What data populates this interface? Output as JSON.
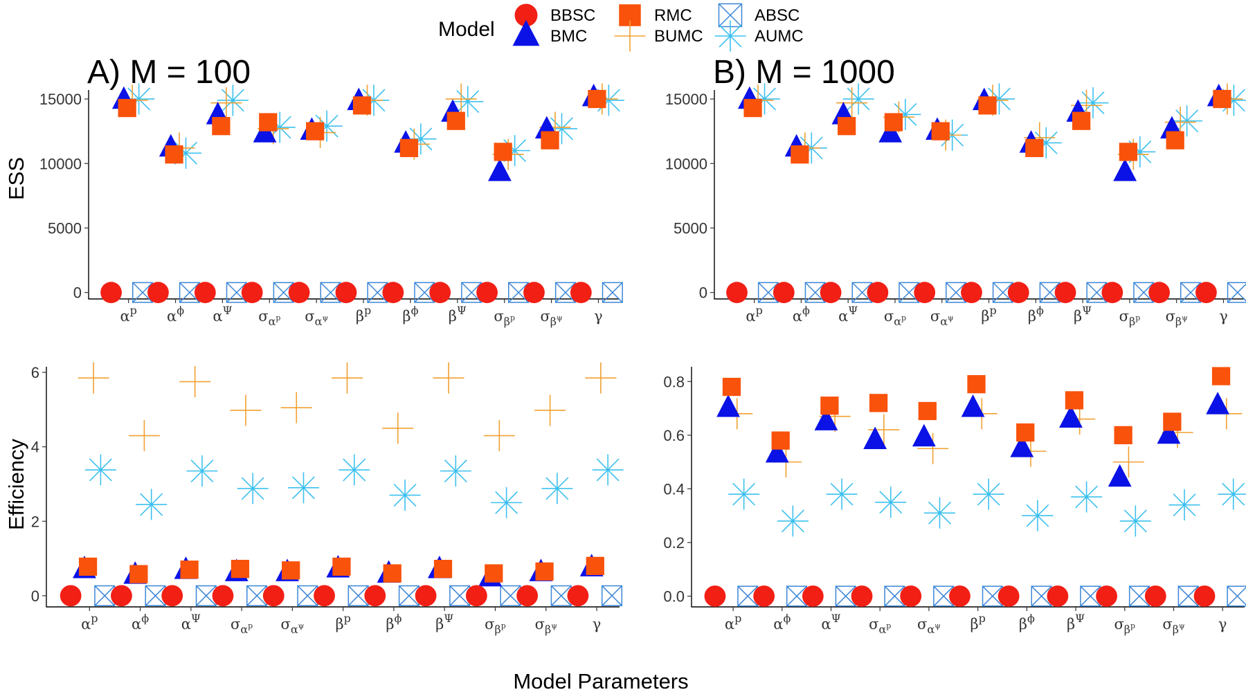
{
  "legend": {
    "title": "Model",
    "entries": [
      {
        "name": "BBSC",
        "shape": "circle",
        "color": "#f21f15"
      },
      {
        "name": "BMC",
        "shape": "triangle",
        "color": "#0a12e6"
      },
      {
        "name": "RMC",
        "shape": "square",
        "color": "#f9520a"
      },
      {
        "name": "BUMC",
        "shape": "plus",
        "color": "#f0a030"
      },
      {
        "name": "ABSC",
        "shape": "boxx",
        "color": "#3a86d8"
      },
      {
        "name": "AUMC",
        "shape": "asterisk",
        "color": "#3cc0ef"
      }
    ]
  },
  "x_axis_title": "Model Parameters",
  "parameters": [
    "α^p",
    "α^ϕ",
    "α^Ψ",
    "σ_α^p",
    "σ_α^ψ",
    "β^p",
    "β^ϕ",
    "β^Ψ",
    "σ_β^p",
    "σ_β^ψ",
    "γ"
  ],
  "chart_data": [
    {
      "id": "ess_m100",
      "type": "scatter",
      "title": "A) M = 100",
      "ylabel": "ESS",
      "ylim": [
        -500,
        15700
      ],
      "yticks": [
        0,
        5000,
        10000,
        15000
      ],
      "categories": [
        "α^p",
        "α^ϕ",
        "α^Ψ",
        "σ_α^p",
        "σ_α^ψ",
        "β^p",
        "β^ϕ",
        "β^Ψ",
        "σ_β^p",
        "σ_β^ψ",
        "γ"
      ],
      "series": [
        {
          "name": "BBSC",
          "values": [
            0,
            0,
            0,
            0,
            0,
            0,
            0,
            0,
            0,
            0,
            0
          ]
        },
        {
          "name": "BMC",
          "values": [
            14900,
            11200,
            13700,
            12300,
            12500,
            14800,
            11500,
            13900,
            9300,
            12600,
            15100
          ]
        },
        {
          "name": "RMC",
          "values": [
            14300,
            10700,
            12900,
            13200,
            12500,
            14500,
            11200,
            13300,
            10900,
            11800,
            15000
          ]
        },
        {
          "name": "BUMC",
          "values": [
            14900,
            11200,
            14700,
            12700,
            12400,
            14900,
            11500,
            15000,
            10700,
            12800,
            15000
          ]
        },
        {
          "name": "ABSC",
          "values": [
            0,
            0,
            0,
            0,
            0,
            0,
            0,
            0,
            0,
            0,
            0
          ]
        },
        {
          "name": "AUMC",
          "values": [
            15000,
            10800,
            14900,
            12800,
            12900,
            14900,
            11900,
            14800,
            11000,
            12700,
            14900
          ]
        }
      ]
    },
    {
      "id": "ess_m1000",
      "type": "scatter",
      "title": "B) M = 1000",
      "ylabel": "",
      "ylim": [
        -500,
        15700
      ],
      "yticks": [
        0,
        5000,
        10000,
        15000
      ],
      "categories": [
        "α^p",
        "α^ϕ",
        "α^Ψ",
        "σ_α^p",
        "σ_α^ψ",
        "β^p",
        "β^ϕ",
        "β^Ψ",
        "σ_β^p",
        "σ_β^ψ",
        "γ"
      ],
      "series": [
        {
          "name": "BBSC",
          "values": [
            0,
            0,
            0,
            0,
            0,
            0,
            0,
            0,
            0,
            0,
            0
          ]
        },
        {
          "name": "BMC",
          "values": [
            14900,
            11200,
            13700,
            12300,
            12500,
            14800,
            11500,
            13900,
            9300,
            12600,
            15100
          ]
        },
        {
          "name": "RMC",
          "values": [
            14300,
            10700,
            12900,
            13200,
            12500,
            14500,
            11200,
            13300,
            10900,
            11800,
            15000
          ]
        },
        {
          "name": "BUMC",
          "values": [
            14900,
            11200,
            14700,
            13600,
            12200,
            14900,
            12000,
            14500,
            10700,
            13200,
            15000
          ]
        },
        {
          "name": "ABSC",
          "values": [
            0,
            0,
            0,
            0,
            0,
            0,
            0,
            0,
            0,
            0,
            0
          ]
        },
        {
          "name": "AUMC",
          "values": [
            15000,
            11200,
            15000,
            13800,
            12200,
            15000,
            11600,
            14700,
            10900,
            13300,
            14900
          ]
        }
      ]
    },
    {
      "id": "eff_m100",
      "type": "scatter",
      "title": "",
      "ylabel": "Efficiency",
      "ylim": [
        -0.3,
        6.15
      ],
      "yticks": [
        0,
        2,
        4,
        6
      ],
      "categories": [
        "α^p",
        "α^ϕ",
        "α^Ψ",
        "σ_α^p",
        "σ_α^ψ",
        "β^p",
        "β^ϕ",
        "β^Ψ",
        "σ_β^p",
        "σ_β^ψ",
        "γ"
      ],
      "series": [
        {
          "name": "BBSC",
          "values": [
            0,
            0,
            0,
            0,
            0,
            0,
            0,
            0,
            0,
            0,
            0
          ]
        },
        {
          "name": "BMC",
          "values": [
            0.7,
            0.55,
            0.68,
            0.62,
            0.62,
            0.72,
            0.58,
            0.7,
            0.48,
            0.62,
            0.75
          ]
        },
        {
          "name": "RMC",
          "values": [
            0.78,
            0.58,
            0.7,
            0.72,
            0.68,
            0.78,
            0.6,
            0.72,
            0.6,
            0.65,
            0.8
          ]
        },
        {
          "name": "BUMC",
          "values": [
            5.85,
            4.3,
            5.75,
            4.98,
            5.05,
            5.85,
            4.5,
            5.85,
            4.3,
            4.98,
            5.85
          ]
        },
        {
          "name": "ABSC",
          "values": [
            0,
            0,
            0,
            0,
            0,
            0,
            0,
            0,
            0,
            0,
            0
          ]
        },
        {
          "name": "AUMC",
          "values": [
            3.38,
            2.45,
            3.35,
            2.88,
            2.9,
            3.38,
            2.7,
            3.35,
            2.5,
            2.88,
            3.38
          ]
        }
      ]
    },
    {
      "id": "eff_m1000",
      "type": "scatter",
      "title": "",
      "ylabel": "",
      "ylim": [
        -0.04,
        0.855
      ],
      "yticks": [
        0.0,
        0.2,
        0.4,
        0.6,
        0.8
      ],
      "categories": [
        "α^p",
        "α^ϕ",
        "α^Ψ",
        "σ_α^p",
        "σ_α^ψ",
        "β^p",
        "β^ϕ",
        "β^Ψ",
        "σ_β^p",
        "σ_β^ψ",
        "γ"
      ],
      "series": [
        {
          "name": "BBSC",
          "values": [
            0,
            0,
            0,
            0,
            0,
            0,
            0,
            0,
            0,
            0,
            0
          ]
        },
        {
          "name": "BMC",
          "values": [
            0.7,
            0.53,
            0.65,
            0.58,
            0.59,
            0.7,
            0.55,
            0.66,
            0.44,
            0.6,
            0.71
          ]
        },
        {
          "name": "RMC",
          "values": [
            0.78,
            0.58,
            0.71,
            0.72,
            0.69,
            0.79,
            0.61,
            0.73,
            0.6,
            0.65,
            0.82
          ]
        },
        {
          "name": "BUMC",
          "values": [
            0.68,
            0.5,
            0.67,
            0.62,
            0.55,
            0.68,
            0.54,
            0.66,
            0.5,
            0.61,
            0.68
          ]
        },
        {
          "name": "ABSC",
          "values": [
            0,
            0,
            0,
            0,
            0,
            0,
            0,
            0,
            0,
            0,
            0
          ]
        },
        {
          "name": "AUMC",
          "values": [
            0.38,
            0.28,
            0.38,
            0.35,
            0.31,
            0.38,
            0.3,
            0.37,
            0.28,
            0.34,
            0.38
          ]
        }
      ]
    }
  ]
}
